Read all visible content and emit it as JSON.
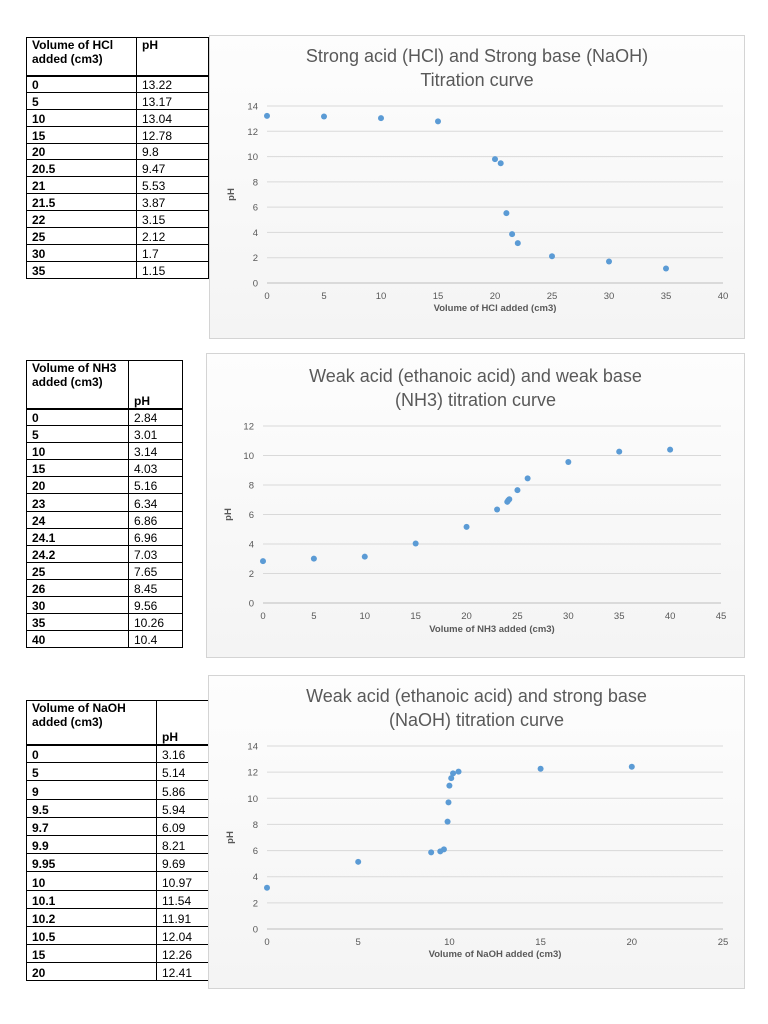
{
  "tables": [
    {
      "headers": [
        "Volume of HCl added (cm3)",
        "pH"
      ],
      "rows": [
        [
          "0",
          "13.22"
        ],
        [
          "5",
          "13.17"
        ],
        [
          "10",
          "13.04"
        ],
        [
          "15",
          "12.78"
        ],
        [
          "20",
          "9.8"
        ],
        [
          "20.5",
          "9.47"
        ],
        [
          "21",
          "5.53"
        ],
        [
          "21.5",
          "3.87"
        ],
        [
          "22",
          "3.15"
        ],
        [
          "25",
          "2.12"
        ],
        [
          "30",
          "1.7"
        ],
        [
          "35",
          "1.15"
        ]
      ]
    },
    {
      "headers": [
        "Volume of NH3 added (cm3)",
        "pH"
      ],
      "rows": [
        [
          "0",
          "2.84"
        ],
        [
          "5",
          "3.01"
        ],
        [
          "10",
          "3.14"
        ],
        [
          "15",
          "4.03"
        ],
        [
          "20",
          "5.16"
        ],
        [
          "23",
          "6.34"
        ],
        [
          "24",
          "6.86"
        ],
        [
          "24.1",
          "6.96"
        ],
        [
          "24.2",
          "7.03"
        ],
        [
          "25",
          "7.65"
        ],
        [
          "26",
          "8.45"
        ],
        [
          "30",
          "9.56"
        ],
        [
          "35",
          "10.26"
        ],
        [
          "40",
          "10.4"
        ]
      ]
    },
    {
      "headers": [
        "Volume of NaOH added (cm3)",
        "pH"
      ],
      "rows": [
        [
          "0",
          "3.16"
        ],
        [
          "5",
          "5.14"
        ],
        [
          "9",
          "5.86"
        ],
        [
          "9.5",
          "5.94"
        ],
        [
          "9.7",
          "6.09"
        ],
        [
          "9.9",
          "8.21"
        ],
        [
          "9.95",
          "9.69"
        ],
        [
          "10",
          "10.97"
        ],
        [
          "10.1",
          "11.54"
        ],
        [
          "10.2",
          "11.91"
        ],
        [
          "10.5",
          "12.04"
        ],
        [
          "15",
          "12.26"
        ],
        [
          "20",
          "12.41"
        ]
      ]
    }
  ],
  "chart_data": [
    {
      "type": "scatter",
      "title": [
        "Strong acid (HCl) and Strong base (NaOH)",
        "Titration curve"
      ],
      "xlabel": "Volume of HCl added (cm3)",
      "ylabel": "pH",
      "xlim": [
        0,
        40
      ],
      "xticks": [
        "0",
        "5",
        "10",
        "15",
        "20",
        "25",
        "30",
        "35",
        "40"
      ],
      "ylim": [
        0,
        14
      ],
      "yticks": [
        "0",
        "2",
        "4",
        "6",
        "8",
        "10",
        "12",
        "14"
      ],
      "grid": "horizontal",
      "color": "#5b9bd5",
      "x": [
        0,
        5,
        10,
        15,
        20,
        20.5,
        21,
        21.5,
        22,
        25,
        30,
        35
      ],
      "y": [
        13.22,
        13.17,
        13.04,
        12.78,
        9.8,
        9.47,
        5.53,
        3.87,
        3.15,
        2.12,
        1.7,
        1.15
      ]
    },
    {
      "type": "scatter",
      "title": [
        "Weak acid (ethanoic acid) and weak base",
        "(NH3) titration curve"
      ],
      "xlabel": "Volume of NH3 added (cm3)",
      "ylabel": "pH",
      "xlim": [
        0,
        45
      ],
      "xticks": [
        "0",
        "5",
        "10",
        "15",
        "20",
        "25",
        "30",
        "35",
        "40",
        "45"
      ],
      "ylim": [
        0,
        12
      ],
      "yticks": [
        "0",
        "2",
        "4",
        "6",
        "8",
        "10",
        "12"
      ],
      "grid": "horizontal",
      "color": "#5b9bd5",
      "x": [
        0,
        5,
        10,
        15,
        20,
        23,
        24,
        24.1,
        24.2,
        25,
        26,
        30,
        35,
        40
      ],
      "y": [
        2.84,
        3.01,
        3.14,
        4.03,
        5.16,
        6.34,
        6.86,
        6.96,
        7.03,
        7.65,
        8.45,
        9.56,
        10.26,
        10.4
      ]
    },
    {
      "type": "scatter",
      "title": [
        "Weak acid (ethanoic acid) and strong base",
        "(NaOH) titration curve"
      ],
      "xlabel": "Volume of NaOH added (cm3)",
      "ylabel": "pH",
      "xlim": [
        0,
        25
      ],
      "xticks": [
        "0",
        "5",
        "10",
        "15",
        "20",
        "25"
      ],
      "ylim": [
        0,
        14
      ],
      "yticks": [
        "0",
        "2",
        "4",
        "6",
        "8",
        "10",
        "12",
        "14"
      ],
      "grid": "horizontal",
      "color": "#5b9bd5",
      "x": [
        0,
        5,
        9,
        9.5,
        9.7,
        9.9,
        9.95,
        10,
        10.1,
        10.2,
        10.5,
        15,
        20
      ],
      "y": [
        3.16,
        5.14,
        5.86,
        5.94,
        6.09,
        8.21,
        9.69,
        10.97,
        11.54,
        11.91,
        12.04,
        12.26,
        12.41
      ]
    }
  ]
}
